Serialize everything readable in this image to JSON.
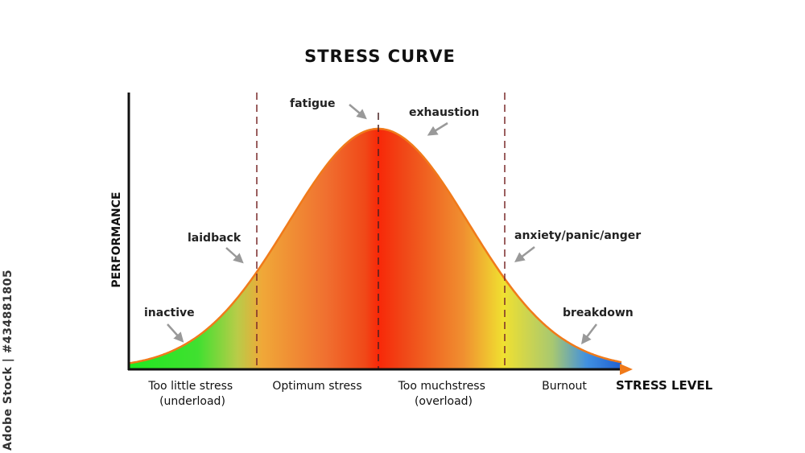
{
  "title": "STRESS CURVE",
  "y_axis_label": "PERFORMANCE",
  "x_axis_label": "STRESS LEVEL",
  "side_credit": "Adobe Stock | #434881805",
  "zones": [
    {
      "name": "too-little-stress",
      "line1": "Too little stress",
      "line2": "(underload)"
    },
    {
      "name": "optimum-stress",
      "line1": "Optimum stress",
      "line2": ""
    },
    {
      "name": "too-much-stress",
      "line1": "Too muchstress",
      "line2": "(overload)"
    },
    {
      "name": "burnout",
      "line1": "Burnout",
      "line2": ""
    }
  ],
  "annotations": [
    {
      "name": "inactive",
      "text": "inactive"
    },
    {
      "name": "laidback",
      "text": "laidback"
    },
    {
      "name": "fatigue",
      "text": "fatigue"
    },
    {
      "name": "exhaustion",
      "text": "exhaustion"
    },
    {
      "name": "anxiety",
      "text": "anxiety/panic/anger"
    },
    {
      "name": "breakdown",
      "text": "breakdown"
    }
  ],
  "colors": {
    "axis": "#111111",
    "divider": "#7a2a2a",
    "arrow": "#999999",
    "curve_outline": "#f07a1a",
    "axis_arrowhead": "#f07a1a",
    "gradient": [
      "#20e820",
      "#9ad840",
      "#f0b030",
      "#f07030",
      "#f04818",
      "#f82808",
      "#f05018",
      "#f09030",
      "#f0e030",
      "#c0d060",
      "#4090e0",
      "#2060d0"
    ]
  }
}
